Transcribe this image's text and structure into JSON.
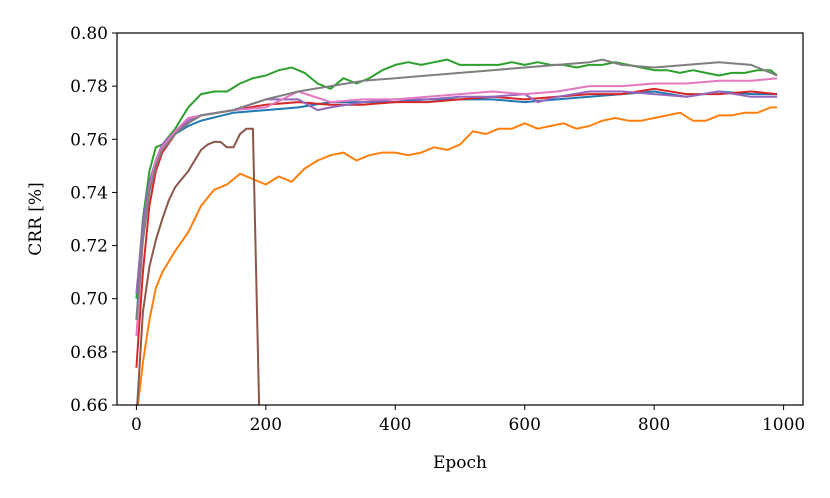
{
  "chart_data": {
    "type": "line",
    "xlabel": "Epoch",
    "ylabel": "CRR [%]",
    "xlim": [
      -30,
      1030
    ],
    "ylim": [
      0.66,
      0.8
    ],
    "xticks": [
      0,
      200,
      400,
      600,
      800,
      1000
    ],
    "xtick_labels": [
      "0",
      "200",
      "400",
      "600",
      "800",
      "1000"
    ],
    "yticks": [
      0.66,
      0.68,
      0.7,
      0.72,
      0.74,
      0.76,
      0.78,
      0.8
    ],
    "ytick_labels": [
      "0.66",
      "0.68",
      "0.70",
      "0.72",
      "0.74",
      "0.76",
      "0.78",
      "0.80"
    ],
    "grid": false,
    "series": [
      {
        "color": "#1f77b4",
        "x": [
          0,
          10,
          20,
          30,
          40,
          60,
          80,
          100,
          150,
          200,
          250,
          300,
          350,
          400,
          450,
          500,
          550,
          600,
          650,
          700,
          750,
          800,
          850,
          900,
          950,
          990
        ],
        "y": [
          0.692,
          0.725,
          0.742,
          0.752,
          0.757,
          0.762,
          0.765,
          0.767,
          0.77,
          0.771,
          0.772,
          0.774,
          0.774,
          0.774,
          0.775,
          0.775,
          0.775,
          0.774,
          0.775,
          0.776,
          0.777,
          0.778,
          0.776,
          0.778,
          0.777,
          0.777
        ]
      },
      {
        "color": "#ff7f0e",
        "x": [
          0,
          10,
          20,
          30,
          40,
          50,
          60,
          80,
          100,
          120,
          140,
          160,
          180,
          200,
          220,
          240,
          260,
          280,
          300,
          320,
          340,
          360,
          380,
          400,
          420,
          440,
          460,
          480,
          500,
          520,
          540,
          560,
          580,
          600,
          620,
          640,
          660,
          680,
          700,
          720,
          740,
          760,
          780,
          800,
          820,
          840,
          860,
          880,
          900,
          920,
          940,
          960,
          980,
          990
        ],
        "y": [
          0.655,
          0.676,
          0.692,
          0.704,
          0.71,
          0.714,
          0.718,
          0.725,
          0.735,
          0.741,
          0.743,
          0.747,
          0.745,
          0.743,
          0.746,
          0.744,
          0.749,
          0.752,
          0.754,
          0.755,
          0.752,
          0.754,
          0.755,
          0.755,
          0.754,
          0.755,
          0.757,
          0.756,
          0.758,
          0.763,
          0.762,
          0.764,
          0.764,
          0.766,
          0.764,
          0.765,
          0.766,
          0.764,
          0.765,
          0.767,
          0.768,
          0.767,
          0.767,
          0.768,
          0.769,
          0.77,
          0.767,
          0.767,
          0.769,
          0.769,
          0.77,
          0.77,
          0.772,
          0.772
        ]
      },
      {
        "color": "#2ca02c",
        "x": [
          0,
          10,
          20,
          30,
          40,
          60,
          80,
          100,
          120,
          140,
          160,
          180,
          200,
          220,
          240,
          260,
          280,
          300,
          320,
          340,
          360,
          380,
          400,
          420,
          440,
          460,
          480,
          500,
          520,
          540,
          560,
          580,
          600,
          620,
          640,
          660,
          680,
          700,
          720,
          740,
          760,
          780,
          800,
          820,
          840,
          860,
          880,
          900,
          920,
          940,
          960,
          980,
          990
        ],
        "y": [
          0.7,
          0.73,
          0.748,
          0.757,
          0.758,
          0.764,
          0.772,
          0.777,
          0.778,
          0.778,
          0.781,
          0.783,
          0.784,
          0.786,
          0.787,
          0.785,
          0.781,
          0.779,
          0.783,
          0.781,
          0.783,
          0.786,
          0.788,
          0.789,
          0.788,
          0.789,
          0.79,
          0.788,
          0.788,
          0.788,
          0.788,
          0.789,
          0.788,
          0.789,
          0.788,
          0.788,
          0.787,
          0.788,
          0.788,
          0.789,
          0.788,
          0.787,
          0.786,
          0.786,
          0.785,
          0.786,
          0.785,
          0.784,
          0.785,
          0.785,
          0.786,
          0.786,
          0.784
        ]
      },
      {
        "color": "#d62728",
        "x": [
          0,
          10,
          20,
          30,
          40,
          60,
          80,
          100,
          150,
          200,
          250,
          300,
          350,
          400,
          450,
          500,
          550,
          600,
          650,
          700,
          750,
          800,
          850,
          900,
          950,
          990
        ],
        "y": [
          0.674,
          0.71,
          0.735,
          0.748,
          0.755,
          0.762,
          0.767,
          0.769,
          0.771,
          0.773,
          0.774,
          0.773,
          0.773,
          0.774,
          0.774,
          0.775,
          0.776,
          0.775,
          0.776,
          0.777,
          0.777,
          0.779,
          0.777,
          0.777,
          0.778,
          0.777
        ]
      },
      {
        "color": "#9467bd",
        "x": [
          0,
          10,
          20,
          30,
          40,
          60,
          80,
          100,
          150,
          200,
          250,
          280,
          300,
          350,
          400,
          450,
          500,
          550,
          600,
          620,
          650,
          700,
          750,
          800,
          850,
          900,
          950,
          990
        ],
        "y": [
          0.702,
          0.728,
          0.744,
          0.752,
          0.758,
          0.763,
          0.767,
          0.769,
          0.771,
          0.775,
          0.775,
          0.771,
          0.772,
          0.774,
          0.775,
          0.775,
          0.776,
          0.776,
          0.777,
          0.774,
          0.776,
          0.778,
          0.778,
          0.777,
          0.776,
          0.778,
          0.776,
          0.776
        ]
      },
      {
        "color": "#8c564b",
        "x": [
          0,
          10,
          20,
          30,
          40,
          50,
          60,
          70,
          80,
          90,
          100,
          110,
          120,
          130,
          140,
          150,
          160,
          170,
          180,
          190
        ],
        "y": [
          0.655,
          0.695,
          0.712,
          0.722,
          0.73,
          0.737,
          0.742,
          0.745,
          0.748,
          0.752,
          0.756,
          0.758,
          0.759,
          0.759,
          0.757,
          0.757,
          0.762,
          0.764,
          0.764,
          0.655
        ]
      },
      {
        "color": "#e377c2",
        "x": [
          0,
          10,
          20,
          30,
          40,
          60,
          80,
          100,
          150,
          200,
          250,
          300,
          350,
          400,
          450,
          500,
          550,
          600,
          650,
          700,
          750,
          800,
          850,
          900,
          950,
          990
        ],
        "y": [
          0.686,
          0.722,
          0.741,
          0.752,
          0.757,
          0.763,
          0.768,
          0.769,
          0.771,
          0.772,
          0.778,
          0.774,
          0.775,
          0.775,
          0.776,
          0.777,
          0.778,
          0.777,
          0.778,
          0.78,
          0.78,
          0.781,
          0.781,
          0.782,
          0.782,
          0.783
        ]
      },
      {
        "color": "#7f7f7f",
        "x": [
          0,
          10,
          20,
          30,
          40,
          60,
          80,
          100,
          150,
          200,
          250,
          300,
          350,
          400,
          450,
          500,
          550,
          600,
          650,
          700,
          720,
          750,
          800,
          850,
          900,
          950,
          990
        ],
        "y": [
          0.692,
          0.722,
          0.74,
          0.75,
          0.756,
          0.762,
          0.766,
          0.769,
          0.771,
          0.775,
          0.778,
          0.78,
          0.782,
          0.783,
          0.784,
          0.785,
          0.786,
          0.787,
          0.788,
          0.789,
          0.79,
          0.788,
          0.787,
          0.788,
          0.789,
          0.788,
          0.784
        ]
      }
    ]
  }
}
